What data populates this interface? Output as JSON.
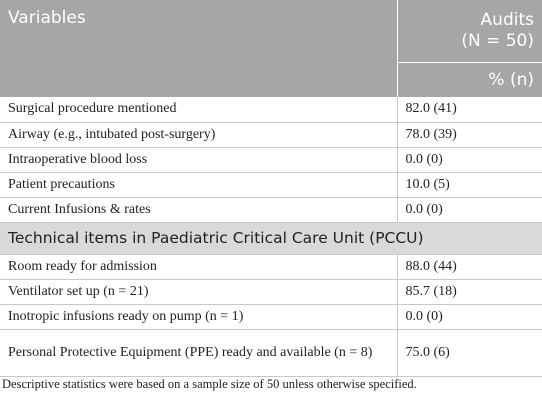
{
  "header": {
    "variables": "Variables",
    "audits": "Audits",
    "audits_n": "(N = 50)",
    "unit": "% (n)"
  },
  "rows": [
    [
      "Surgical procedure mentioned",
      "82.0 (41)"
    ],
    [
      "Airway (e.g., intubated post-surgery)",
      "78.0 (39)"
    ],
    [
      "Intraoperative blood loss",
      "0.0 (0)"
    ],
    [
      "Patient precautions",
      "10.0 (5)"
    ],
    [
      "Current Infusions & rates",
      "0.0 (0)"
    ]
  ],
  "section": "Technical items in Paediatric Critical Care Unit (PCCU)",
  "section_rows": [
    [
      "Room ready for admission",
      "88.0 (44)"
    ],
    [
      "Ventilator set up (n = 21)",
      "85.7 (18)"
    ],
    [
      "Inotropic infusions ready on pump (n = 1)",
      "0.0 (0)"
    ],
    [
      "Personal Protective Equipment (PPE) ready and available (n = 8)",
      "75.0 (6)"
    ]
  ],
  "footnote": "Descriptive statistics were based on a sample size of 50 unless otherwise specified."
}
